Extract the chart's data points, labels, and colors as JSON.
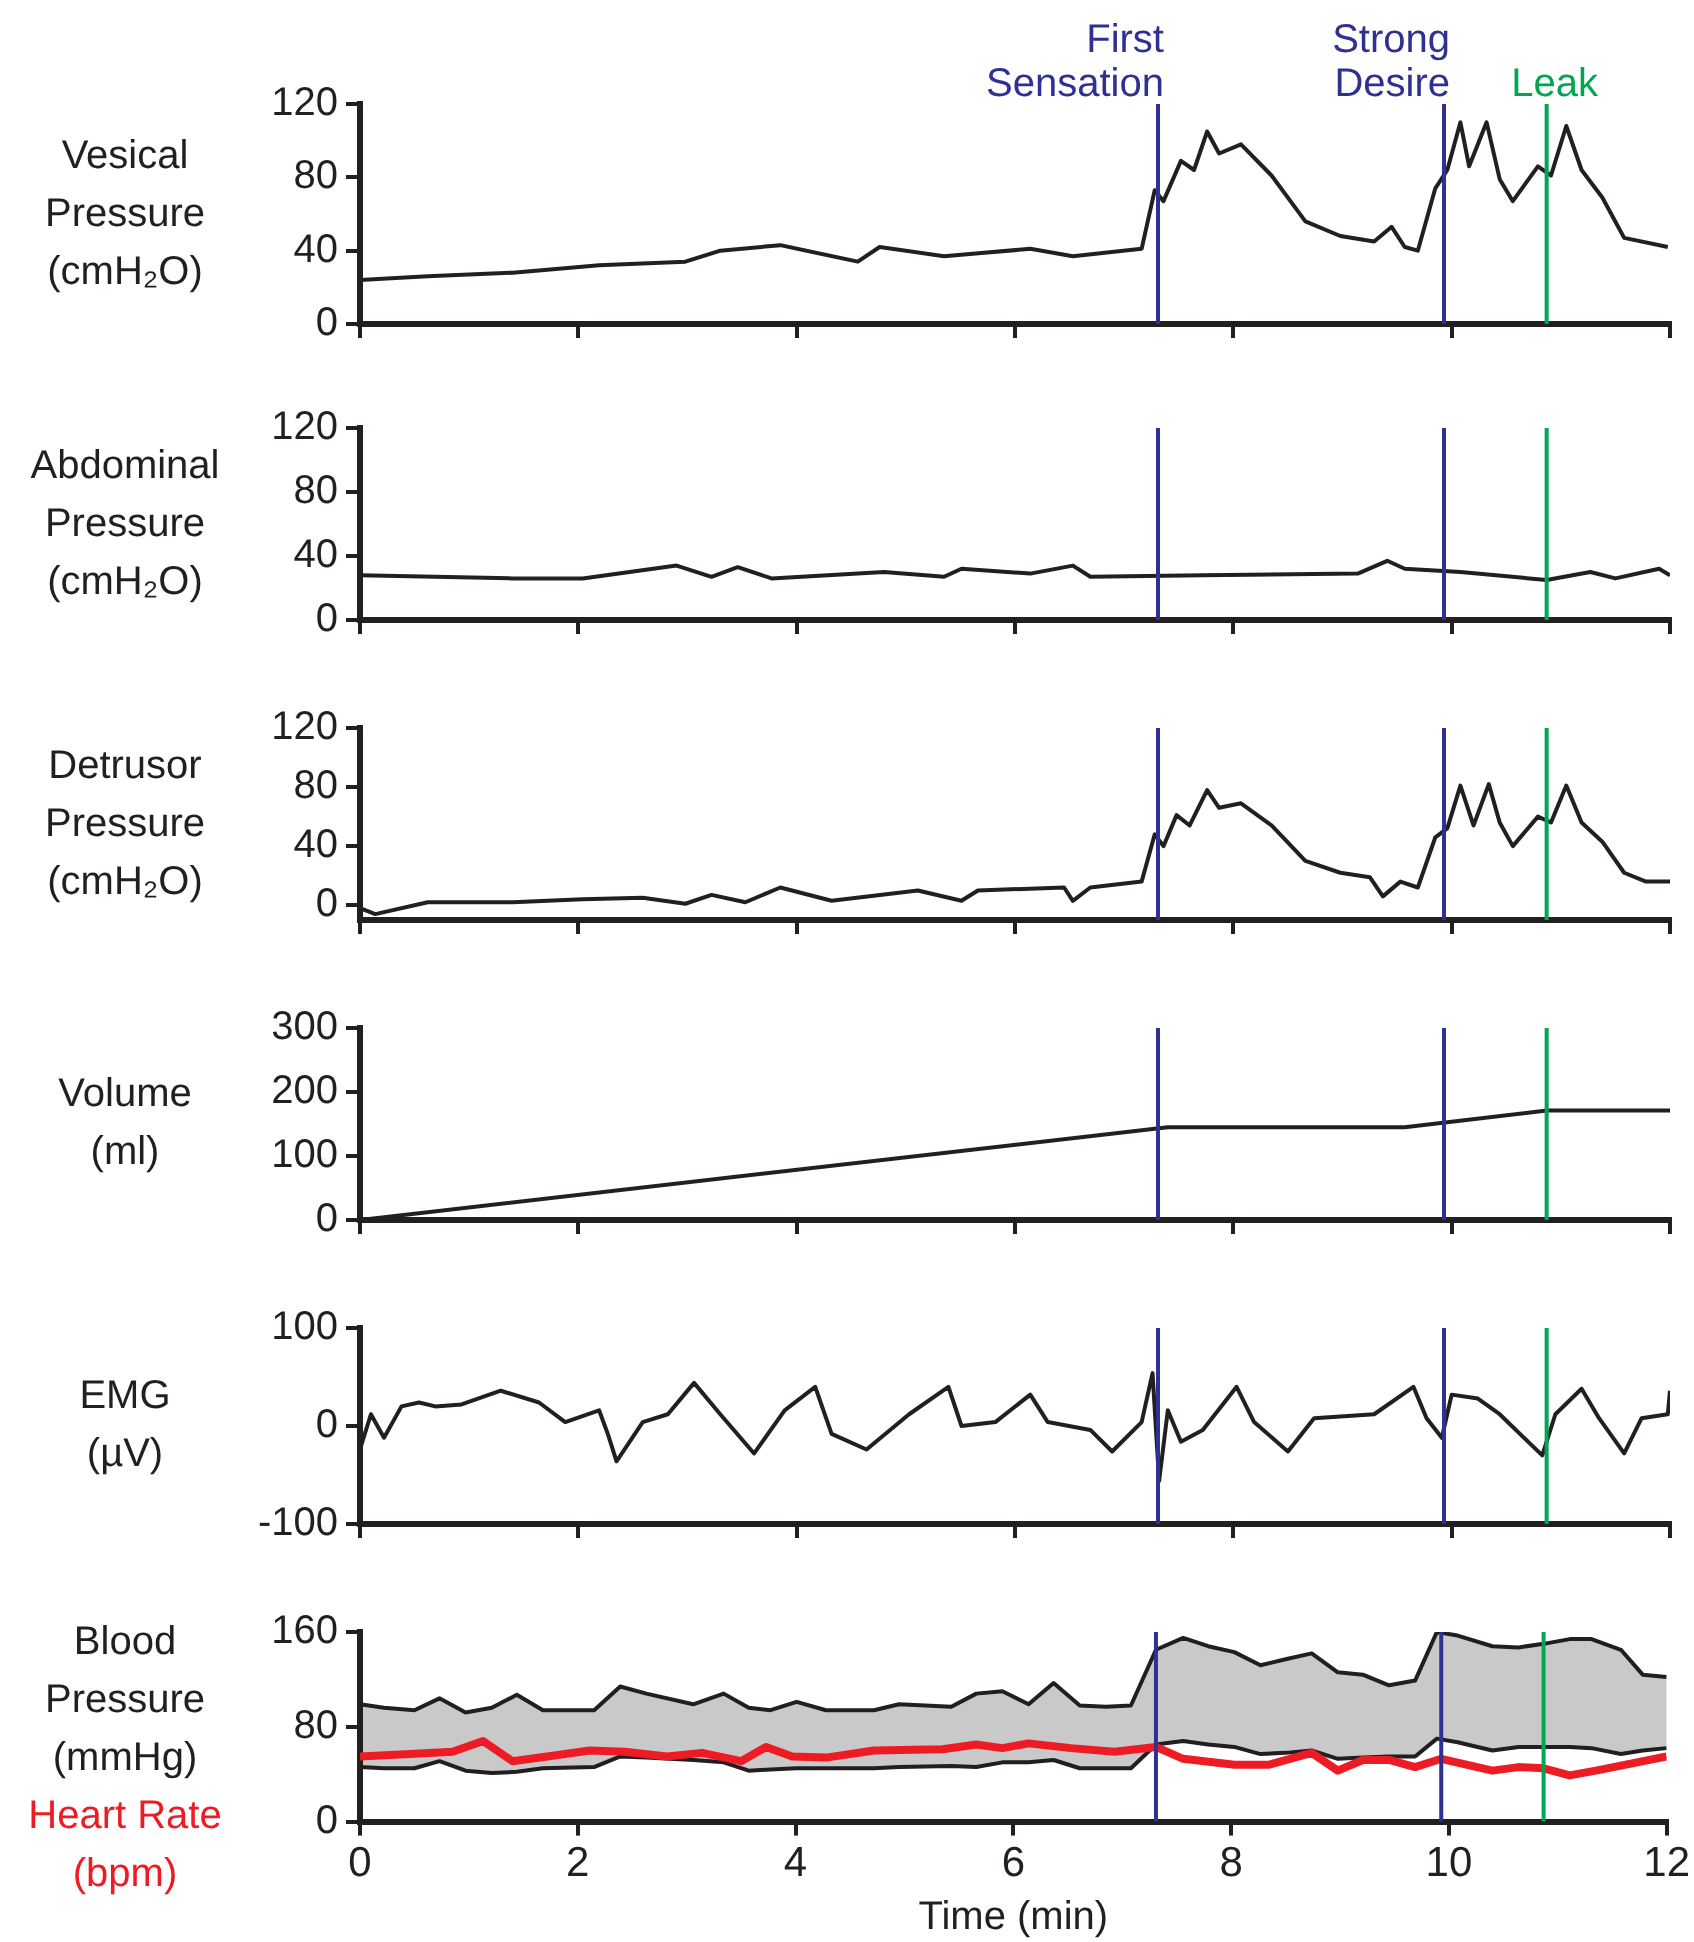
{
  "chart_data": [
    {
      "type": "line",
      "ylabel": "Vesical\nPressure\n(cmH₂O)",
      "xlim": [
        0,
        12
      ],
      "xticks": [
        0,
        2,
        4,
        6,
        8,
        10,
        12
      ],
      "ylim": [
        0,
        120
      ],
      "yticks": [
        0,
        40,
        80,
        120
      ],
      "tick_labels": "y",
      "ref_lines": [
        {
          "axis": "x",
          "value": 7.31,
          "label": "First Sensation",
          "color": "#2e3192"
        },
        {
          "axis": "x",
          "value": 9.93,
          "label": "Strong Desire",
          "color": "#2e3192"
        },
        {
          "axis": "x",
          "value": 10.87,
          "label": "Leak",
          "color": "#00a651"
        }
      ],
      "series": [
        {
          "color": "#231f20",
          "x": [
            0,
            0.62,
            1.4,
            2.19,
            2.98,
            3.3,
            3.85,
            4.56,
            4.76,
            5.35,
            6.14,
            6.53,
            7.16,
            7.28,
            7.36,
            7.52,
            7.64,
            7.76,
            7.87,
            8.07,
            8.35,
            8.66,
            8.98,
            9.29,
            9.45,
            9.57,
            9.69,
            9.85,
            9.96,
            10.08,
            10.16,
            10.32,
            10.44,
            10.56,
            10.79,
            10.91,
            11.05,
            11.19,
            11.38,
            11.58,
            11.98
          ],
          "values": [
            24,
            26,
            28,
            32,
            34,
            40,
            43,
            34,
            42,
            37,
            41,
            37,
            41,
            73,
            67,
            89,
            84,
            105,
            93,
            98,
            81,
            56,
            48,
            45,
            53,
            42,
            40,
            74,
            84,
            110,
            86,
            110,
            79,
            67,
            86,
            81,
            108,
            84,
            69,
            47,
            42
          ]
        }
      ]
    },
    {
      "type": "line",
      "ylabel": "Abdominal\nPressure\n(cmH₂O)",
      "xlim": [
        0,
        12
      ],
      "xticks": [
        0,
        2,
        4,
        6,
        8,
        10,
        12
      ],
      "ylim": [
        0,
        120
      ],
      "yticks": [
        0,
        40,
        80,
        120
      ],
      "tick_labels": "y",
      "ref_lines": [
        {
          "axis": "x",
          "value": 7.31,
          "color": "#2e3192"
        },
        {
          "axis": "x",
          "value": 9.93,
          "color": "#2e3192"
        },
        {
          "axis": "x",
          "value": 10.87,
          "color": "#00a651"
        }
      ],
      "series": [
        {
          "color": "#231f20",
          "x": [
            0,
            1.4,
            2.04,
            2.9,
            3.22,
            3.46,
            3.77,
            4.8,
            5.35,
            5.51,
            6.14,
            6.53,
            6.69,
            7.72,
            9.14,
            9.41,
            9.57,
            10.08,
            10.87,
            11.27,
            11.5,
            11.9,
            12
          ],
          "values": [
            28,
            26,
            26,
            34,
            27,
            33,
            26,
            30,
            27,
            32,
            29,
            34,
            27,
            28,
            29,
            37,
            32,
            30,
            25,
            30,
            26,
            32,
            28
          ]
        }
      ]
    },
    {
      "type": "line",
      "ylabel": "Detrusor\nPressure\n(cmH₂O)",
      "xlim": [
        0,
        12
      ],
      "xticks": [
        0,
        2,
        4,
        6,
        8,
        10,
        12
      ],
      "ylim": [
        -10,
        120
      ],
      "yticks": [
        0,
        40,
        80,
        120
      ],
      "tick_labels": "y",
      "ref_lines": [
        {
          "axis": "x",
          "value": 7.31,
          "color": "#2e3192"
        },
        {
          "axis": "x",
          "value": 9.93,
          "color": "#2e3192"
        },
        {
          "axis": "x",
          "value": 10.87,
          "color": "#00a651"
        }
      ],
      "series": [
        {
          "color": "#231f20",
          "x": [
            0,
            0.14,
            0.62,
            1.4,
            2.04,
            2.59,
            2.98,
            3.22,
            3.53,
            3.85,
            4.32,
            5.11,
            5.51,
            5.66,
            6.45,
            6.53,
            6.69,
            7.16,
            7.28,
            7.36,
            7.48,
            7.6,
            7.76,
            7.87,
            8.07,
            8.35,
            8.66,
            8.98,
            9.25,
            9.37,
            9.53,
            9.69,
            9.85,
            9.96,
            10.08,
            10.2,
            10.34,
            10.44,
            10.56,
            10.79,
            10.91,
            11.05,
            11.19,
            11.38,
            11.58,
            11.78,
            12
          ],
          "values": [
            -2,
            -6,
            2,
            2,
            4,
            5,
            1,
            7,
            2,
            12,
            3,
            10,
            3,
            10,
            12,
            3,
            12,
            16,
            48,
            40,
            61,
            54,
            78,
            66,
            69,
            54,
            30,
            22,
            19,
            6,
            16,
            12,
            46,
            52,
            81,
            54,
            82,
            56,
            40,
            60,
            56,
            81,
            56,
            43,
            22,
            16,
            16
          ]
        }
      ]
    },
    {
      "type": "line",
      "ylabel": "Volume\n(ml)",
      "xlim": [
        0,
        12
      ],
      "xticks": [
        0,
        2,
        4,
        6,
        8,
        10,
        12
      ],
      "ylim": [
        0,
        300
      ],
      "yticks": [
        0,
        100,
        200,
        300
      ],
      "tick_labels": "y",
      "ref_lines": [
        {
          "axis": "x",
          "value": 7.31,
          "color": "#2e3192"
        },
        {
          "axis": "x",
          "value": 9.93,
          "color": "#2e3192"
        },
        {
          "axis": "x",
          "value": 10.87,
          "color": "#00a651"
        }
      ],
      "series": [
        {
          "color": "#231f20",
          "x": [
            0,
            7.4,
            9.57,
            10.87,
            12
          ],
          "values": [
            0,
            145,
            145,
            171,
            171
          ]
        }
      ]
    },
    {
      "type": "line",
      "ylabel": "EMG\n(µV)",
      "xlim": [
        0,
        12
      ],
      "xticks": [
        0,
        2,
        4,
        6,
        8,
        10,
        12
      ],
      "ylim": [
        -100,
        100
      ],
      "yticks": [
        -100,
        0,
        100
      ],
      "tick_labels": "y",
      "ref_lines": [
        {
          "axis": "x",
          "value": 7.31,
          "color": "#2e3192"
        },
        {
          "axis": "x",
          "value": 9.93,
          "color": "#2e3192"
        },
        {
          "axis": "x",
          "value": 10.87,
          "color": "#00a651"
        }
      ],
      "series": [
        {
          "color": "#231f20",
          "x": [
            0,
            0.1,
            0.22,
            0.38,
            0.54,
            0.69,
            0.93,
            1.29,
            1.64,
            1.88,
            2.19,
            2.27,
            2.35,
            2.59,
            2.82,
            3.06,
            3.3,
            3.61,
            3.89,
            4.17,
            4.32,
            4.64,
            5.03,
            5.39,
            5.51,
            5.82,
            6.14,
            6.3,
            6.69,
            6.89,
            7.16,
            7.26,
            7.32,
            7.4,
            7.52,
            7.72,
            8.03,
            8.19,
            8.5,
            8.74,
            9.29,
            9.65,
            9.77,
            9.91,
            10.0,
            10.24,
            10.44,
            10.83,
            10.95,
            11.19,
            11.35,
            11.58,
            11.74,
            11.98,
            12
          ],
          "values": [
            -24,
            12,
            -12,
            20,
            24,
            20,
            22,
            36,
            24,
            4,
            16,
            -8,
            -36,
            4,
            12,
            44,
            12,
            -28,
            16,
            40,
            -8,
            -24,
            12,
            40,
            0,
            4,
            32,
            4,
            -4,
            -26,
            4,
            54,
            -56,
            16,
            -16,
            -4,
            40,
            4,
            -26,
            8,
            12,
            40,
            8,
            -12,
            32,
            28,
            12,
            -30,
            12,
            38,
            8,
            -28,
            8,
            12,
            36
          ]
        }
      ]
    },
    {
      "type": "line",
      "ylabel": "Blood\nPressure\n(mmHg)",
      "xlabel": "Time (min)",
      "xlim": [
        0,
        12
      ],
      "xticks": [
        0,
        2,
        4,
        6,
        8,
        10,
        12
      ],
      "ylim": [
        0,
        160
      ],
      "yticks": [
        0,
        80,
        160
      ],
      "ref_lines": [
        {
          "axis": "x",
          "value": 7.31,
          "color": "#2e3192"
        },
        {
          "axis": "x",
          "value": 9.93,
          "color": "#2e3192"
        },
        {
          "axis": "x",
          "value": 10.87,
          "color": "#00a651"
        }
      ],
      "series": [
        {
          "color": "#231f20",
          "x": [
            0,
            0.22,
            0.5,
            0.73,
            0.97,
            1.21,
            1.44,
            1.68,
            2.15,
            2.39,
            2.63,
            3.06,
            3.34,
            3.57,
            3.77,
            4.01,
            4.28,
            4.72,
            4.95,
            5.43,
            5.66,
            5.9,
            6.14,
            6.37,
            6.61,
            6.85,
            7.08,
            7.31,
            7.56,
            7.79,
            8.03,
            8.27,
            8.5,
            8.74,
            8.98,
            9.21,
            9.45,
            9.69,
            9.89,
            10.08,
            10.4,
            10.64,
            10.87,
            11.11,
            11.31,
            11.58,
            11.78,
            12
          ],
          "values": [
            99,
            96,
            94,
            104,
            92,
            96,
            107,
            94,
            94,
            114,
            108,
            99,
            108,
            96,
            94,
            101,
            94,
            94,
            99,
            97,
            108,
            110,
            99,
            117,
            98,
            97,
            98,
            145,
            155,
            148,
            143,
            132,
            137,
            142,
            126,
            124,
            115,
            119,
            160,
            157,
            148,
            147,
            150,
            154,
            154,
            145,
            124,
            122
          ]
        },
        {
          "color": "#231f20",
          "x": [
            0,
            0.22,
            0.5,
            0.73,
            0.97,
            1.21,
            1.44,
            1.68,
            2.15,
            2.39,
            2.63,
            3.06,
            3.34,
            3.57,
            3.77,
            4.01,
            4.28,
            4.72,
            4.95,
            5.43,
            5.66,
            5.9,
            6.14,
            6.37,
            6.61,
            6.85,
            7.08,
            7.31,
            7.56,
            7.79,
            8.03,
            8.27,
            8.5,
            8.74,
            8.98,
            9.21,
            9.45,
            9.69,
            9.89,
            10.08,
            10.4,
            10.64,
            10.87,
            11.11,
            11.31,
            11.58,
            11.78,
            12
          ],
          "values": [
            46,
            45,
            45,
            51,
            43,
            41,
            42,
            45,
            46,
            55,
            54,
            52,
            50,
            43,
            44,
            45,
            45,
            45,
            46,
            47,
            46,
            50,
            50,
            52,
            45,
            45,
            45,
            65,
            68,
            65,
            63,
            57,
            58,
            60,
            53,
            54,
            55,
            55,
            70,
            67,
            60,
            63,
            63,
            63,
            62,
            57,
            60,
            62
          ],
          "lower": [
            46,
            45,
            45,
            51,
            43,
            41,
            42,
            45,
            46,
            55,
            54,
            52,
            50,
            43,
            44,
            45,
            45,
            45,
            46,
            47,
            46,
            50,
            50,
            52,
            45,
            45,
            45,
            65,
            68,
            65,
            63,
            57,
            58,
            60,
            53,
            54,
            55,
            55,
            70,
            67,
            60,
            63,
            63,
            63,
            62,
            57,
            60,
            62
          ],
          "upper": [
            99,
            96,
            94,
            104,
            92,
            96,
            107,
            94,
            94,
            114,
            108,
            99,
            108,
            96,
            94,
            101,
            94,
            94,
            99,
            97,
            108,
            110,
            99,
            117,
            98,
            97,
            98,
            145,
            155,
            148,
            143,
            132,
            137,
            142,
            126,
            124,
            115,
            119,
            160,
            157,
            148,
            147,
            150,
            154,
            154,
            145,
            124,
            122
          ]
        },
        {
          "name": "Heart Rate (bpm)",
          "color": "#ed1c24",
          "x": [
            0,
            0.46,
            0.85,
            1.13,
            1.4,
            1.72,
            2.11,
            2.43,
            2.82,
            3.14,
            3.5,
            3.73,
            3.97,
            4.28,
            4.72,
            5.35,
            5.66,
            5.9,
            6.14,
            6.53,
            6.93,
            7.31,
            7.56,
            8.03,
            8.35,
            8.74,
            8.98,
            9.21,
            9.45,
            9.69,
            9.93,
            10.4,
            10.64,
            10.87,
            11.11,
            11.35,
            12
          ],
          "values": [
            55,
            57,
            59,
            68,
            51,
            55,
            60,
            59,
            55,
            58,
            51,
            63,
            55,
            54,
            60,
            61,
            65,
            62,
            66,
            62,
            59,
            63,
            53,
            48,
            48,
            58,
            43,
            52,
            52,
            46,
            53,
            43,
            46,
            45,
            39,
            43,
            55
          ]
        }
      ]
    }
  ]
}
